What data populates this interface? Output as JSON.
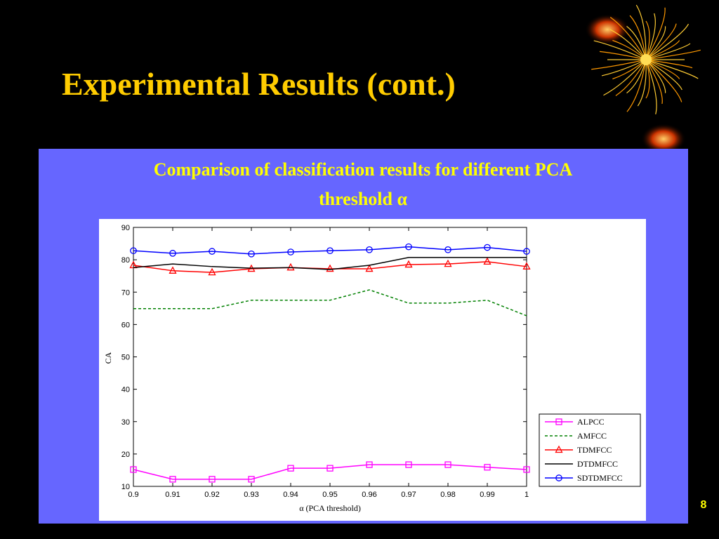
{
  "header": {
    "title": "Experimental Results (cont.)"
  },
  "slide_number": "8",
  "chart_data": {
    "type": "line",
    "caption": [
      "Comparison of classification results for different PCA",
      "threshold α"
    ],
    "xlabel": "α (PCA threshold)",
    "ylabel": "CA",
    "x": [
      0.9,
      0.91,
      0.92,
      0.93,
      0.94,
      0.95,
      0.96,
      0.97,
      0.98,
      0.99,
      1
    ],
    "xlim": [
      0.9,
      1
    ],
    "ylim": [
      10,
      90
    ],
    "xticks": [
      0.9,
      0.91,
      0.92,
      0.93,
      0.94,
      0.95,
      0.96,
      0.97,
      0.98,
      0.99,
      1
    ],
    "yticks": [
      10,
      20,
      30,
      40,
      50,
      60,
      70,
      80,
      90
    ],
    "grid": false,
    "legend": "lower right",
    "series": [
      {
        "name": "ALPCC",
        "color": "#ff00ff",
        "marker": "square",
        "dashed": false,
        "values": [
          15.2,
          12.2,
          12.2,
          12.2,
          15.6,
          15.6,
          16.7,
          16.7,
          16.7,
          15.9,
          15.2
        ]
      },
      {
        "name": "AMFCC",
        "color": "#008000",
        "marker": "none",
        "dashed": true,
        "values": [
          64.9,
          64.9,
          64.9,
          67.5,
          67.5,
          67.5,
          70.7,
          66.6,
          66.6,
          67.5,
          62.7
        ]
      },
      {
        "name": "TDMFCC",
        "color": "#ff0000",
        "marker": "triangle",
        "dashed": false,
        "values": [
          78.3,
          76.6,
          76.1,
          77.2,
          77.6,
          77.2,
          77.2,
          78.5,
          78.7,
          79.4,
          77.9
        ]
      },
      {
        "name": "DTDMFCC",
        "color": "#000000",
        "marker": "none",
        "dashed": false,
        "values": [
          77.6,
          78.7,
          77.9,
          77.4,
          77.6,
          77.0,
          78.3,
          80.7,
          80.7,
          80.7,
          80.7
        ]
      },
      {
        "name": "SDTDMFCC",
        "color": "#0000ff",
        "marker": "circle",
        "dashed": false,
        "values": [
          82.8,
          82.0,
          82.6,
          81.8,
          82.4,
          82.8,
          83.1,
          84.0,
          83.1,
          83.8,
          82.6
        ]
      }
    ]
  }
}
